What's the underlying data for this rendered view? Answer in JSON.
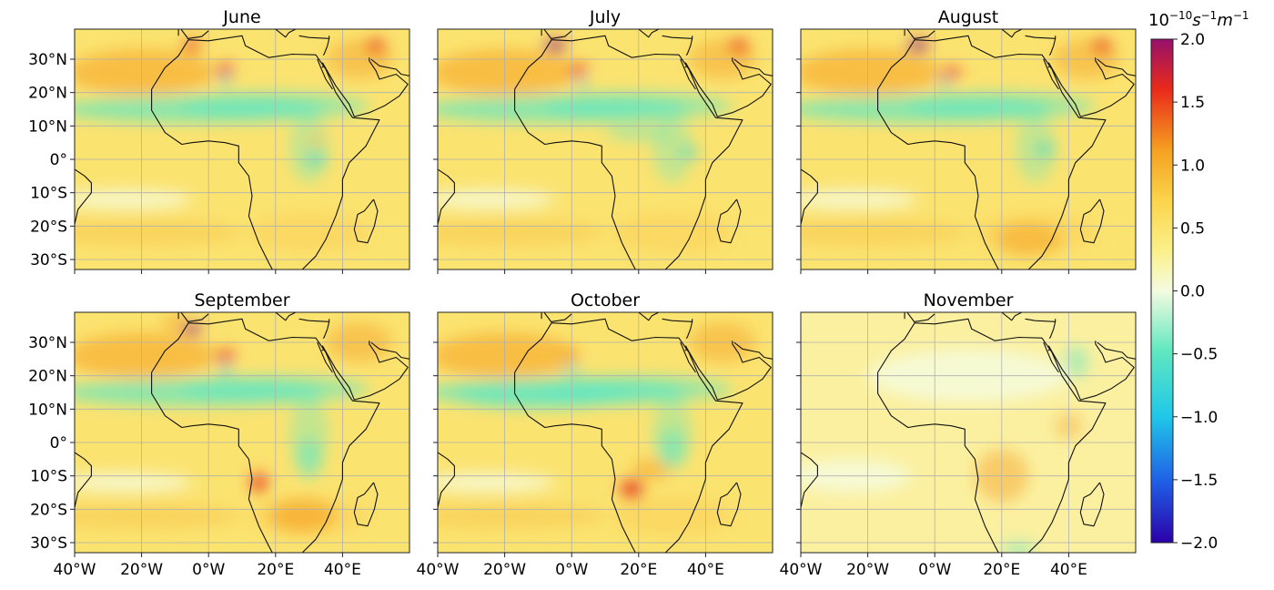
{
  "chart_data": {
    "type": "heatmap",
    "panels": [
      {
        "title": "June"
      },
      {
        "title": "July"
      },
      {
        "title": "August"
      },
      {
        "title": "September"
      },
      {
        "title": "October"
      },
      {
        "title": "November"
      }
    ],
    "lon_range": [
      -40,
      60
    ],
    "lat_range": [
      -33,
      39
    ],
    "x_ticks": [
      {
        "value": -40,
        "label": "40°W"
      },
      {
        "value": -20,
        "label": "20°W"
      },
      {
        "value": 0,
        "label": "0°W"
      },
      {
        "value": 20,
        "label": "20°E"
      },
      {
        "value": 40,
        "label": "40°E"
      }
    ],
    "y_ticks": [
      {
        "value": 30,
        "label": "30°N"
      },
      {
        "value": 20,
        "label": "20°N"
      },
      {
        "value": 10,
        "label": "10°N"
      },
      {
        "value": 0,
        "label": "0°"
      },
      {
        "value": -10,
        "label": "10°S"
      },
      {
        "value": -20,
        "label": "20°S"
      },
      {
        "value": -30,
        "label": "30°S"
      }
    ],
    "grid": true,
    "colorbar": {
      "unit_base": "10",
      "unit_exp": "−10",
      "unit_rest": "s",
      "unit_exp2": "−1",
      "unit_rest2": "m",
      "unit_exp3": "−1",
      "range": [
        -2.0,
        2.0
      ],
      "ticks": [
        {
          "value": 2.0,
          "label": "2.0"
        },
        {
          "value": 1.5,
          "label": "1.5"
        },
        {
          "value": 1.0,
          "label": "1.0"
        },
        {
          "value": 0.5,
          "label": "0.5"
        },
        {
          "value": 0.0,
          "label": "0.0"
        },
        {
          "value": -0.5,
          "label": "−0.5"
        },
        {
          "value": -1.0,
          "label": "−1.0"
        },
        {
          "value": -1.5,
          "label": "−1.5"
        },
        {
          "value": -2.0,
          "label": "−2.0"
        }
      ],
      "colors": [
        "#2b00a8",
        "#1f5ee6",
        "#1fc7e8",
        "#5fe8c0",
        "#f4fbe0",
        "#fbf08a",
        "#fbd44a",
        "#f5a020",
        "#ea2a1a",
        "#96106b"
      ]
    }
  }
}
